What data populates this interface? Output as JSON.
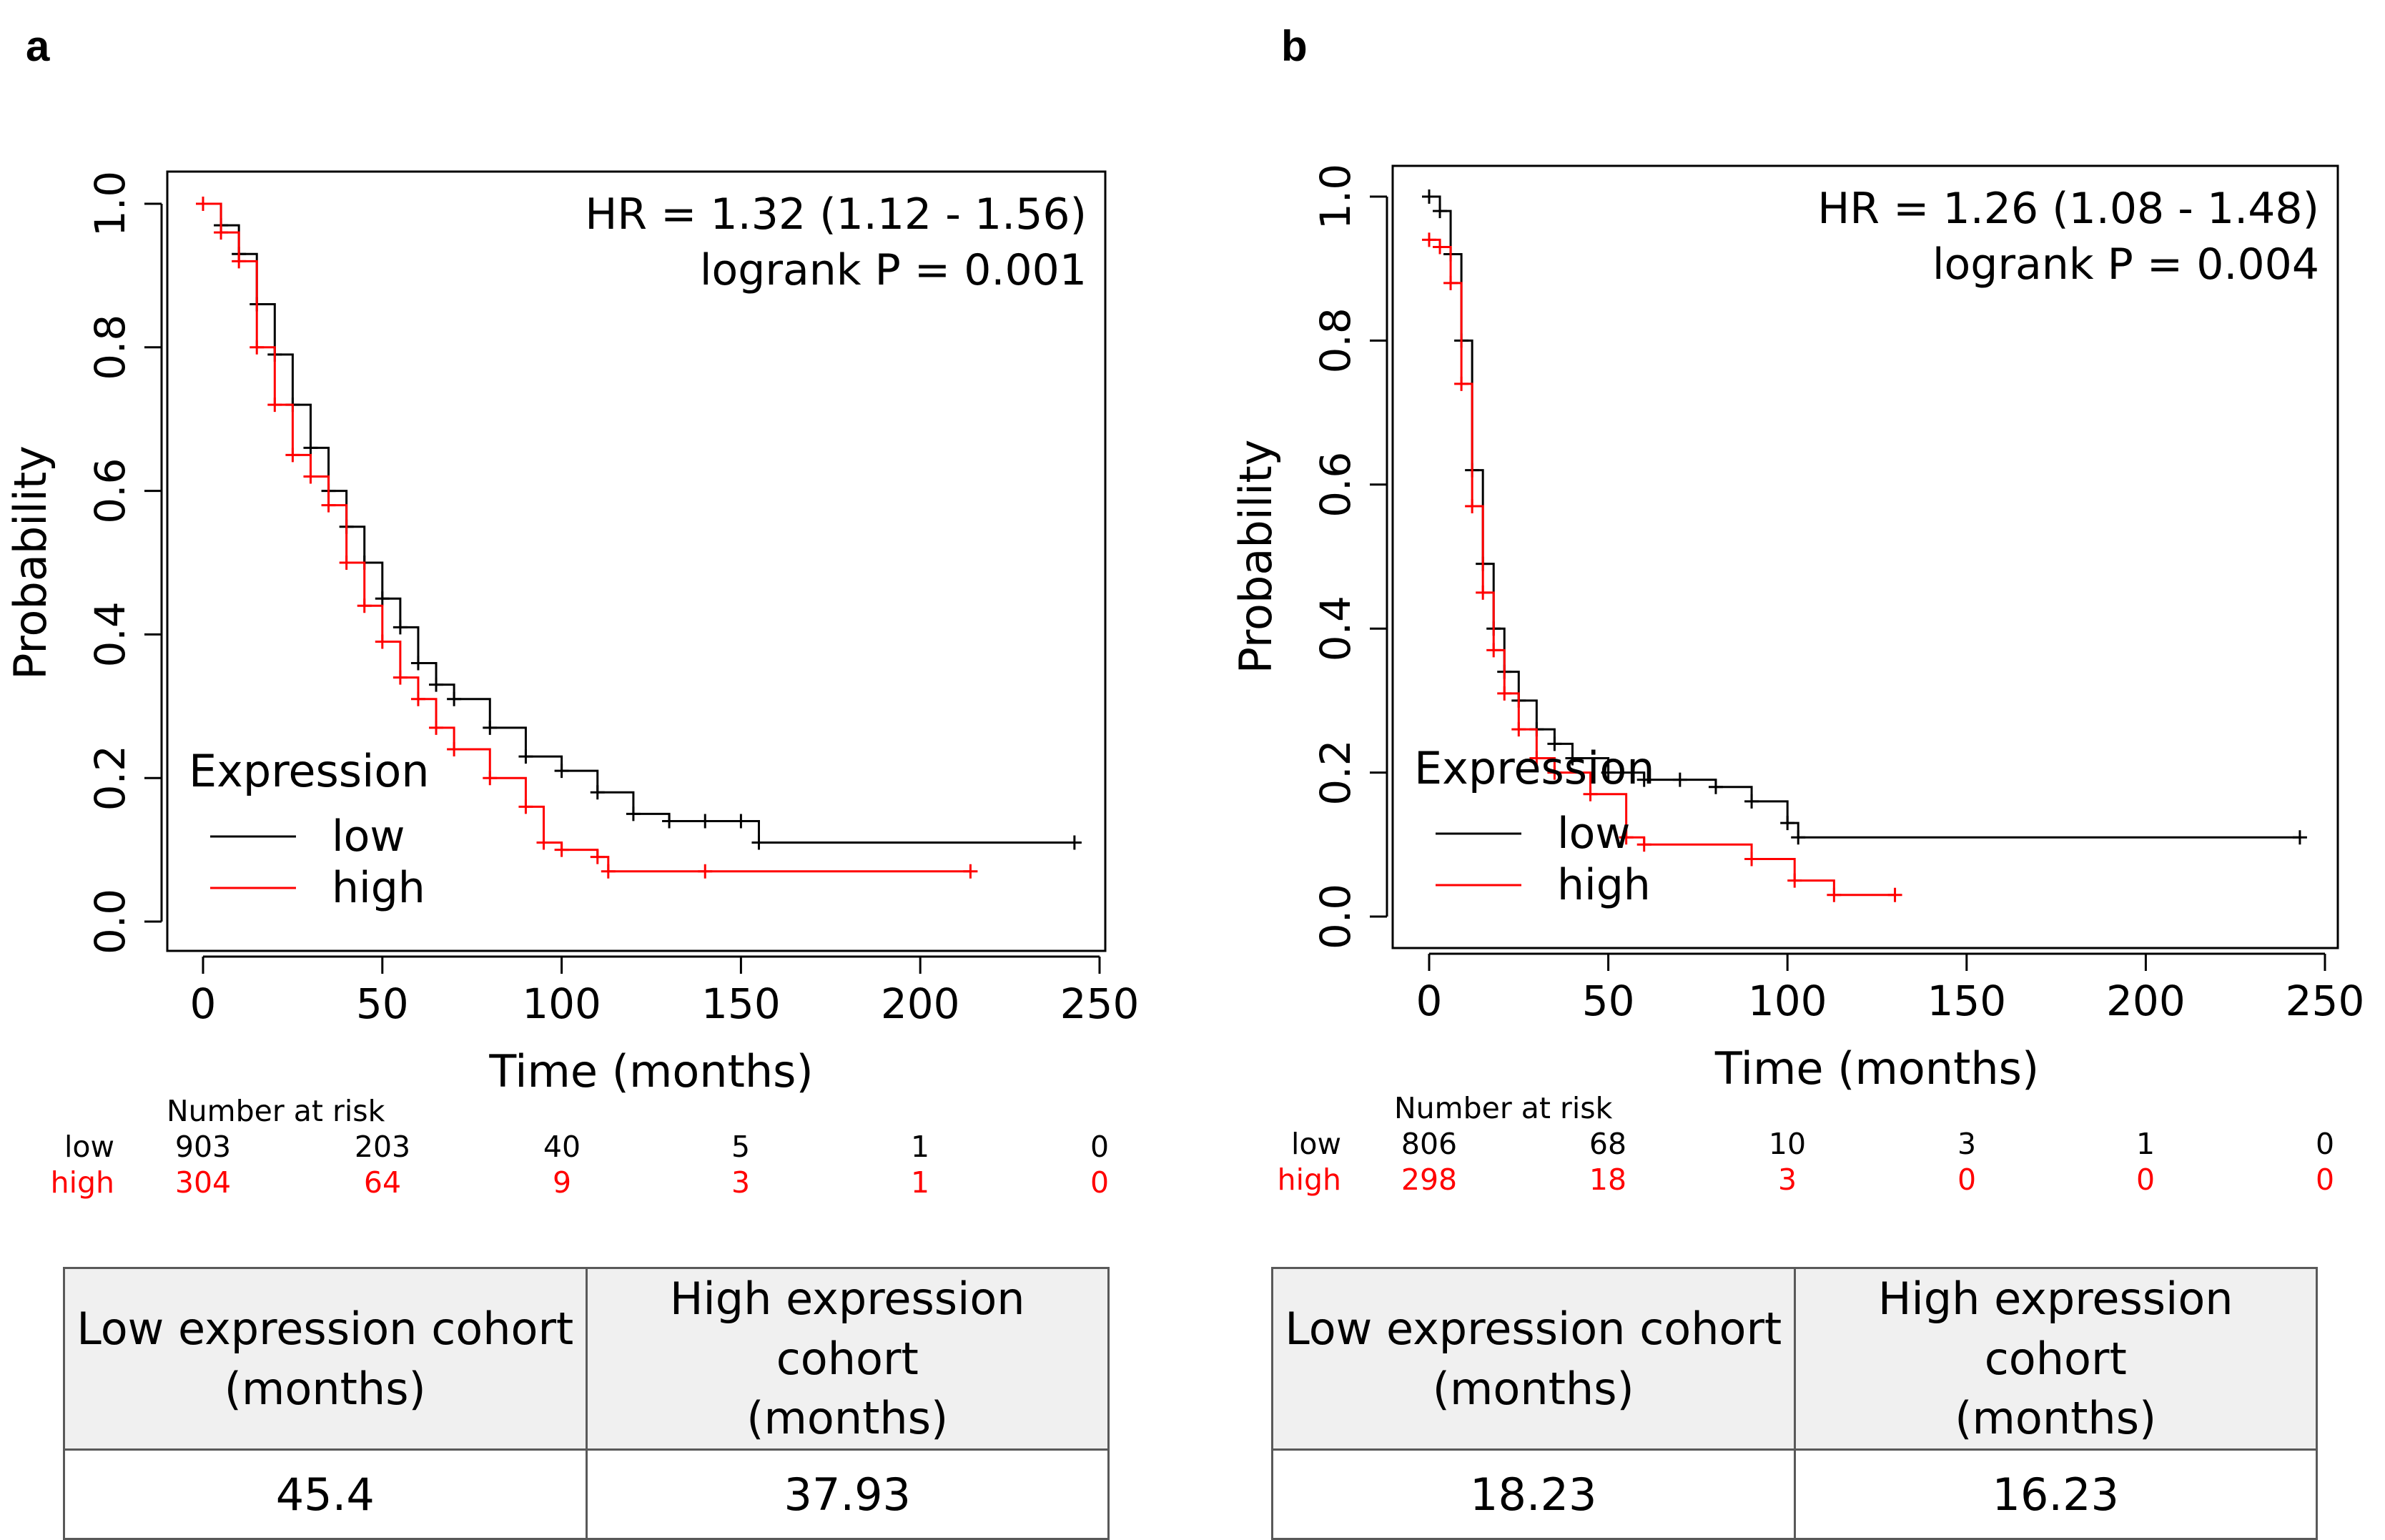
{
  "panels": [
    {
      "letter": "a",
      "table": {
        "headers": [
          [
            "Low expression cohort",
            "(months)"
          ],
          [
            "High expression cohort",
            "(months)"
          ]
        ],
        "values": [
          "45.4",
          "37.93"
        ]
      }
    },
    {
      "letter": "b",
      "table": {
        "headers": [
          [
            "Low expression cohort",
            "(months)"
          ],
          [
            "High expression cohort",
            "(months)"
          ]
        ],
        "values": [
          "18.23",
          "16.23"
        ]
      }
    }
  ],
  "chart_data": [
    {
      "type": "line",
      "title": "",
      "xlabel": "Time (months)",
      "ylabel": "Probability",
      "xlim": [
        0,
        250
      ],
      "ylim": [
        0,
        1
      ],
      "xticks": [
        0,
        50,
        100,
        150,
        200,
        250
      ],
      "yticks": [
        0.0,
        0.2,
        0.4,
        0.6,
        0.8,
        1.0
      ],
      "ytick_labels": [
        "0.0",
        "0.2",
        "0.4",
        "0.6",
        "0.8",
        "1.0"
      ],
      "annotations": [
        "HR = 1.32 (1.12 - 1.56)",
        "logrank P = 0.001"
      ],
      "legend": {
        "title": "Expression",
        "position": "bottom-left",
        "entries": [
          "low",
          "high"
        ]
      },
      "series": [
        {
          "name": "low",
          "color": "#000000",
          "x": [
            0,
            5,
            10,
            15,
            20,
            25,
            30,
            35,
            40,
            45,
            50,
            55,
            60,
            65,
            70,
            80,
            90,
            100,
            110,
            120,
            130,
            140,
            150,
            155,
            243
          ],
          "y": [
            1.0,
            0.97,
            0.93,
            0.86,
            0.79,
            0.72,
            0.66,
            0.6,
            0.55,
            0.5,
            0.45,
            0.41,
            0.36,
            0.33,
            0.31,
            0.27,
            0.23,
            0.21,
            0.18,
            0.15,
            0.14,
            0.14,
            0.14,
            0.11,
            0.11
          ]
        },
        {
          "name": "high",
          "color": "#ff0000",
          "x": [
            0,
            5,
            10,
            15,
            20,
            25,
            30,
            35,
            40,
            45,
            50,
            55,
            60,
            65,
            70,
            80,
            90,
            95,
            100,
            110,
            113,
            140,
            214
          ],
          "y": [
            1.0,
            0.96,
            0.92,
            0.8,
            0.72,
            0.65,
            0.62,
            0.58,
            0.5,
            0.44,
            0.39,
            0.34,
            0.31,
            0.27,
            0.24,
            0.2,
            0.16,
            0.11,
            0.1,
            0.09,
            0.07,
            0.07,
            0.07
          ]
        }
      ],
      "risk_table": {
        "title": "Number at risk",
        "times": [
          0,
          50,
          100,
          150,
          200,
          250
        ],
        "rows": [
          {
            "label": "low",
            "values": [
              "903",
              "203",
              "40",
              "5",
              "1",
              "0"
            ]
          },
          {
            "label": "high",
            "values": [
              "304",
              "64",
              "9",
              "3",
              "1",
              "0"
            ]
          }
        ]
      }
    },
    {
      "type": "line",
      "title": "",
      "xlabel": "Time (months)",
      "ylabel": "Probability",
      "xlim": [
        0,
        250
      ],
      "ylim": [
        0,
        1
      ],
      "xticks": [
        0,
        50,
        100,
        150,
        200,
        250
      ],
      "yticks": [
        0.0,
        0.2,
        0.4,
        0.6,
        0.8,
        1.0
      ],
      "ytick_labels": [
        "0.0",
        "0.2",
        "0.4",
        "0.6",
        "0.8",
        "1.0"
      ],
      "annotations": [
        "HR = 1.26 (1.08 - 1.48)",
        "logrank P = 0.004"
      ],
      "legend": {
        "title": "Expression",
        "position": "bottom-left",
        "entries": [
          "low",
          "high"
        ]
      },
      "series": [
        {
          "name": "low",
          "color": "#000000",
          "x": [
            0,
            3,
            6,
            9,
            12,
            15,
            18,
            21,
            25,
            30,
            35,
            40,
            50,
            60,
            70,
            80,
            90,
            100,
            103,
            243
          ],
          "y": [
            1.0,
            0.98,
            0.92,
            0.8,
            0.62,
            0.49,
            0.4,
            0.34,
            0.3,
            0.26,
            0.24,
            0.22,
            0.2,
            0.19,
            0.19,
            0.18,
            0.16,
            0.13,
            0.11,
            0.11
          ]
        },
        {
          "name": "high",
          "color": "#ff0000",
          "x": [
            0,
            3,
            6,
            9,
            12,
            15,
            18,
            21,
            25,
            30,
            35,
            45,
            55,
            60,
            90,
            102,
            113,
            130
          ],
          "y": [
            0.94,
            0.93,
            0.88,
            0.74,
            0.57,
            0.45,
            0.37,
            0.31,
            0.26,
            0.22,
            0.2,
            0.17,
            0.11,
            0.1,
            0.08,
            0.05,
            0.03,
            0.03
          ]
        }
      ],
      "risk_table": {
        "title": "Number at risk",
        "times": [
          0,
          50,
          100,
          150,
          200,
          250
        ],
        "rows": [
          {
            "label": "low",
            "values": [
              "806",
              "68",
              "10",
              "3",
              "1",
              "0"
            ]
          },
          {
            "label": "high",
            "values": [
              "298",
              "18",
              "3",
              "0",
              "0",
              "0"
            ]
          }
        ]
      }
    }
  ]
}
